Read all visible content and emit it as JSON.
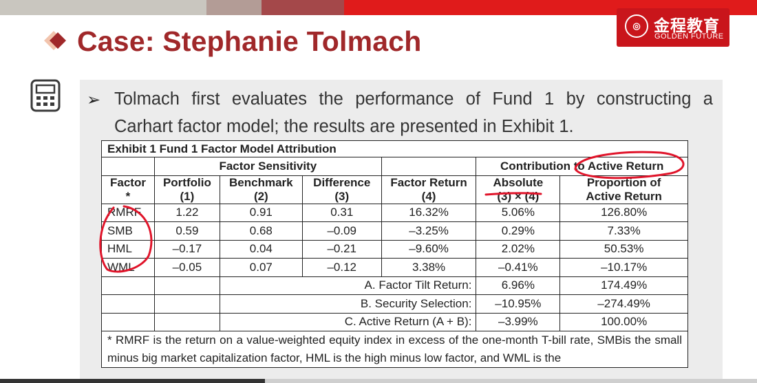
{
  "header": {
    "title": "Case: Stephanie Tolmach",
    "logo_cn": "金程教育",
    "logo_en": "GOLDEN FUTURE",
    "brand_color": "#a0282a"
  },
  "bullet": {
    "line1": "Tolmach first evaluates the performance of Fund 1 by constructing a",
    "line2": "Carhart factor model; the results are presented in Exhibit 1."
  },
  "exhibit": {
    "caption": "Exhibit 1 Fund 1 Factor Model Attribution",
    "group_sensitivity": "Factor Sensitivity",
    "group_contribution": "Contribution to Active Return",
    "headers": {
      "factor": "Factor",
      "factor_note": "*",
      "portfolio": "Portfolio",
      "portfolio_n": "(1)",
      "benchmark": "Benchmark",
      "benchmark_n": "(2)",
      "difference": "Difference",
      "difference_n": "(3)",
      "factor_return": "Factor Return",
      "factor_return_n": "(4)",
      "absolute": "Absolute",
      "absolute_n": "(3) × (4)",
      "proportion": "Proportion of",
      "proportion_n": "Active Return"
    },
    "rows": [
      {
        "factor": "RMRF",
        "portfolio": "1.22",
        "benchmark": "0.91",
        "difference": "0.31",
        "factor_return": "16.32%",
        "absolute": "5.06%",
        "proportion": "126.80%"
      },
      {
        "factor": "SMB",
        "portfolio": "0.59",
        "benchmark": "0.68",
        "difference": "–0.09",
        "factor_return": "–3.25%",
        "absolute": "0.29%",
        "proportion": "7.33%"
      },
      {
        "factor": "HML",
        "portfolio": "–0.17",
        "benchmark": "0.04",
        "difference": "–0.21",
        "factor_return": "–9.60%",
        "absolute": "2.02%",
        "proportion": "50.53%"
      },
      {
        "factor": "WML",
        "portfolio": "–0.05",
        "benchmark": "0.07",
        "difference": "–0.12",
        "factor_return": "3.38%",
        "absolute": "–0.41%",
        "proportion": "–10.17%"
      }
    ],
    "summary": [
      {
        "label": "A. Factor Tilt Return:",
        "absolute": "6.96%",
        "proportion": "174.49%"
      },
      {
        "label": "B. Security Selection:",
        "absolute": "–10.95%",
        "proportion": "–274.49%"
      },
      {
        "label": "C. Active Return (A + B):",
        "absolute": "–3.99%",
        "proportion": "100.00%"
      }
    ],
    "footnote": "* RMRF is the return on a value-weighted equity index in excess of the one-month T-bill rate, SMBis the small minus big market capitalization factor, HML is the high minus low factor, and WML is the"
  },
  "player": {
    "progress": 0.35
  }
}
